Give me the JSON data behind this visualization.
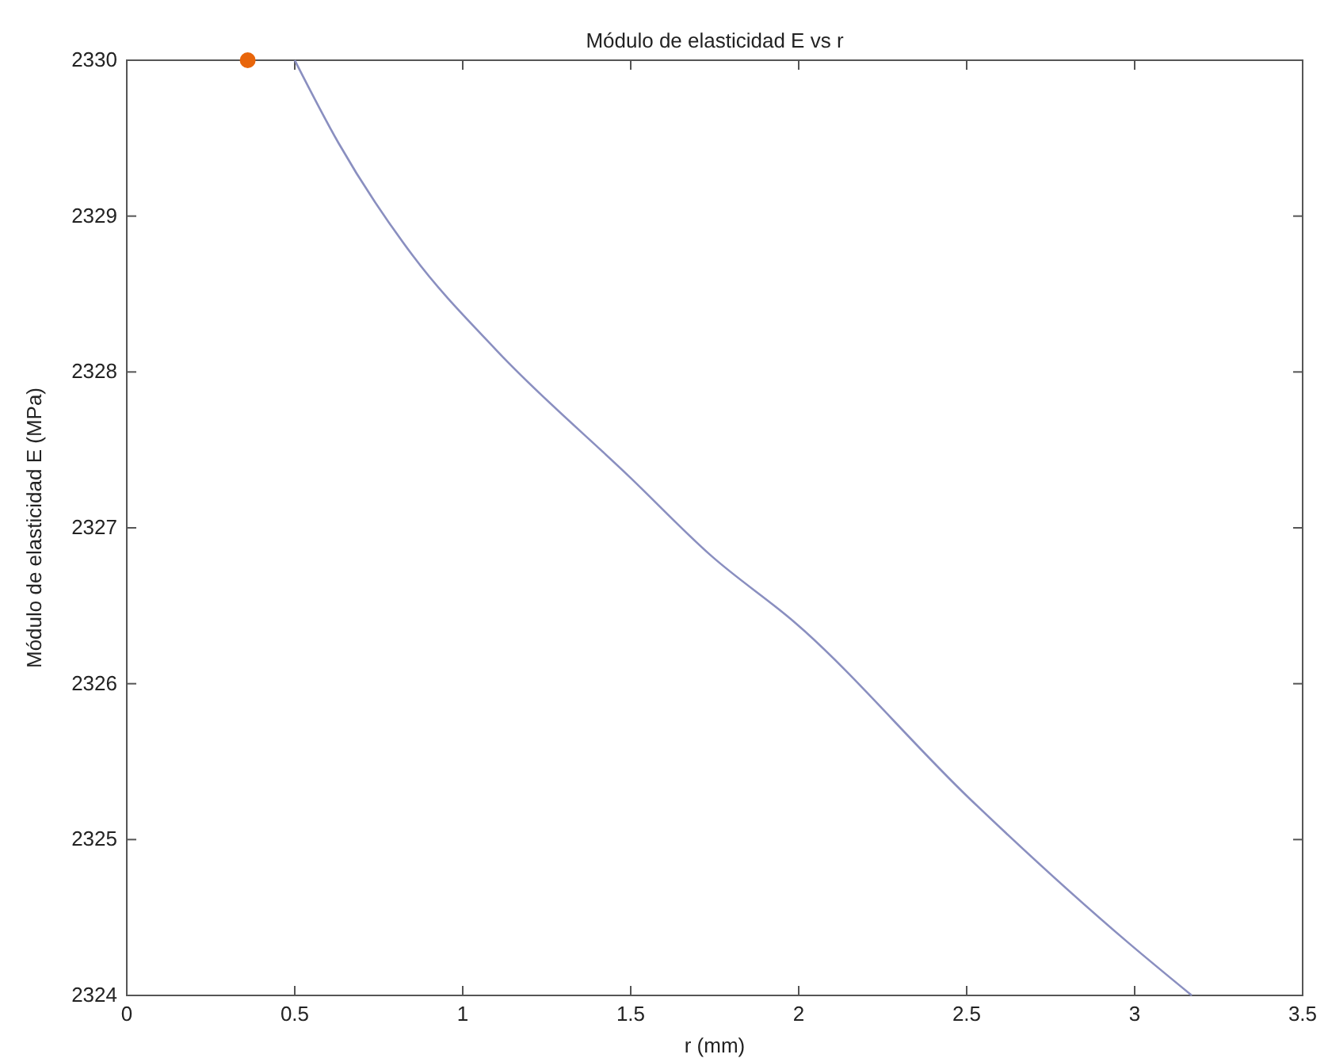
{
  "chart_data": {
    "type": "line",
    "title": "Módulo de elasticidad E vs r",
    "xlabel": "r (mm)",
    "ylabel": "Módulo de elasticidad E (MPa)",
    "xlim": [
      0,
      3.5
    ],
    "xticks": [
      0,
      0.5,
      1,
      1.5,
      2,
      2.5,
      3,
      3.5
    ],
    "ylim": [
      2324,
      2330
    ],
    "yticks": [
      2324,
      2325,
      2326,
      2327,
      2328,
      2329,
      2330
    ],
    "grid": false,
    "series": [
      {
        "color": "#8a8fc0",
        "x": [
          0.5,
          0.63,
          0.85,
          1.1,
          1.5,
          1.74,
          1.99,
          2.51,
          2.98,
          3.17
        ],
        "values": [
          2330,
          2329.47,
          2328.75,
          2328.14,
          2327.32,
          2326.82,
          2326.39,
          2325.26,
          2324.34,
          2324
        ]
      },
      {
        "type": "scatter",
        "color": "#e8650a",
        "marker": "circle",
        "x": [
          0.36
        ],
        "values": [
          2330
        ]
      }
    ]
  }
}
